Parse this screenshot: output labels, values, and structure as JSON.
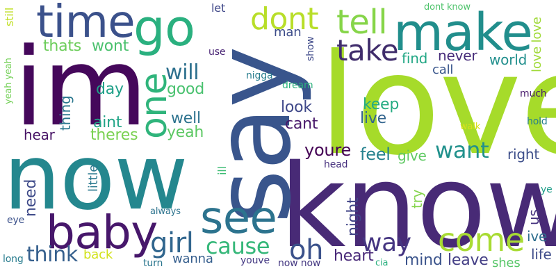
{
  "words": [
    {
      "text": "love",
      "color": "#a6db2a"
    },
    {
      "text": "know",
      "color": "#482a76"
    },
    {
      "text": "im",
      "color": "#45085b"
    },
    {
      "text": "now",
      "color": "#24878e"
    },
    {
      "text": "say",
      "color": "#39558c"
    },
    {
      "text": "make",
      "color": "#218e8c"
    },
    {
      "text": "time",
      "color": "#3b518b"
    },
    {
      "text": "go",
      "color": "#2ab07f"
    },
    {
      "text": "baby",
      "color": "#47176b"
    },
    {
      "text": "see",
      "color": "#2c738e"
    },
    {
      "text": "one",
      "color": "#2fb47b"
    },
    {
      "text": "come",
      "color": "#a8db33"
    },
    {
      "text": "dont",
      "color": "#b8de29"
    },
    {
      "text": "tell",
      "color": "#86d549"
    },
    {
      "text": "take",
      "color": "#3f2c6b"
    },
    {
      "text": "girl",
      "color": "#31668e"
    },
    {
      "text": "cause",
      "color": "#35b779"
    },
    {
      "text": "oh",
      "color": "#3b528b"
    },
    {
      "text": "way",
      "color": "#453581"
    },
    {
      "text": "want",
      "color": "#21918c"
    },
    {
      "text": "think",
      "color": "#355f8d"
    },
    {
      "text": "will",
      "color": "#2d708e"
    },
    {
      "text": "youre",
      "color": "#440154"
    },
    {
      "text": "feel",
      "color": "#26828e"
    },
    {
      "text": "mind",
      "color": "#3a538b"
    },
    {
      "text": "leave",
      "color": "#433e85"
    },
    {
      "text": "heart",
      "color": "#482878"
    },
    {
      "text": "night",
      "color": "#414487"
    },
    {
      "text": "need",
      "color": "#3e4a89"
    },
    {
      "text": "thats",
      "color": "#6ccd5a"
    },
    {
      "text": "wont",
      "color": "#4ac16d"
    },
    {
      "text": "good",
      "color": "#48c16e"
    },
    {
      "text": "look",
      "color": "#3f4889"
    },
    {
      "text": "cant",
      "color": "#48186a"
    },
    {
      "text": "well",
      "color": "#2c728e"
    },
    {
      "text": "yeah",
      "color": "#5cc863"
    },
    {
      "text": "keep",
      "color": "#25ab82"
    },
    {
      "text": "live",
      "color": "#32648e"
    },
    {
      "text": "day",
      "color": "#1fa088"
    },
    {
      "text": "aint",
      "color": "#20a486"
    },
    {
      "text": "theres",
      "color": "#7ad151"
    },
    {
      "text": "hear",
      "color": "#471365"
    },
    {
      "text": "thing",
      "color": "#2a778e"
    },
    {
      "text": "find",
      "color": "#22a785"
    },
    {
      "text": "never",
      "color": "#472c7a"
    },
    {
      "text": "world",
      "color": "#218f8d"
    },
    {
      "text": "call",
      "color": "#39568c"
    },
    {
      "text": "love love",
      "color": "#a0da39"
    },
    {
      "text": "give",
      "color": "#5ec962"
    },
    {
      "text": "right",
      "color": "#3d4e8a"
    },
    {
      "text": "try",
      "color": "#84d44b"
    },
    {
      "text": "us",
      "color": "#46337f"
    },
    {
      "text": "ive",
      "color": "#2e6e8e"
    },
    {
      "text": "life",
      "color": "#3e4c8a"
    },
    {
      "text": "shes",
      "color": "#56c667"
    },
    {
      "text": "wanna",
      "color": "#355e8d"
    },
    {
      "text": "back",
      "color": "#d2e21b"
    },
    {
      "text": "little",
      "color": "#2a788e"
    },
    {
      "text": "man",
      "color": "#3d4d8a"
    },
    {
      "text": "let",
      "color": "#3f4788"
    },
    {
      "text": "use",
      "color": "#482374"
    },
    {
      "text": "nigga",
      "color": "#287d8e"
    },
    {
      "text": "dream",
      "color": "#2db27d"
    },
    {
      "text": "show",
      "color": "#3e4989"
    },
    {
      "text": "much",
      "color": "#481b6d"
    },
    {
      "text": "walk",
      "color": "#d8e219"
    },
    {
      "text": "hold",
      "color": "#277f8e"
    },
    {
      "text": "head",
      "color": "#46307e"
    },
    {
      "text": "ill",
      "color": "#3dbc74"
    },
    {
      "text": "always",
      "color": "#2c738e"
    },
    {
      "text": "eye",
      "color": "#3b518b"
    },
    {
      "text": "long",
      "color": "#287c8e"
    },
    {
      "text": "turn",
      "color": "#2a768e"
    },
    {
      "text": "youve",
      "color": "#443983"
    },
    {
      "text": "now now",
      "color": "#453882"
    },
    {
      "text": "cia",
      "color": "#2ab07f"
    },
    {
      "text": "ye",
      "color": "#1f9e89"
    },
    {
      "text": "still",
      "color": "#c0df25"
    },
    {
      "text": "yeah yeah",
      "color": "#73d056"
    },
    {
      "text": "dont know",
      "color": "#4ec36b"
    }
  ]
}
